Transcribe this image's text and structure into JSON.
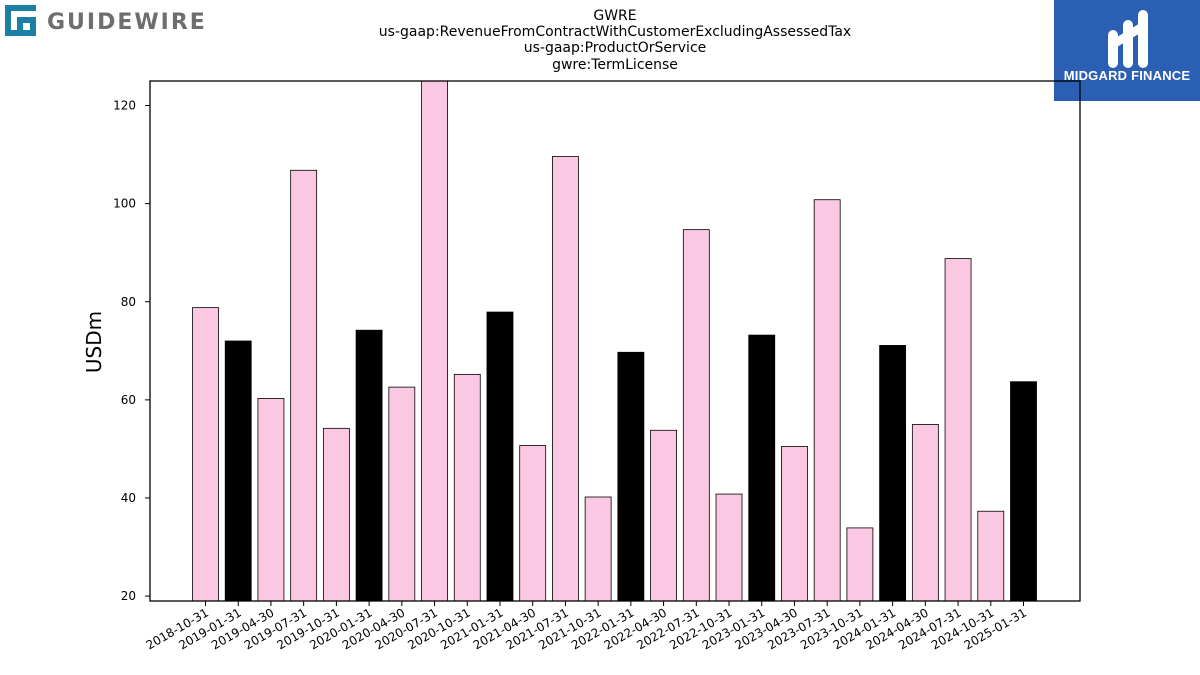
{
  "logos": {
    "left_text": "GUIDEWIRE",
    "right_text": "MIDGARD FINANCE"
  },
  "colors": {
    "highlight": "#000000",
    "normal": "#fbc8e3",
    "left_logo_icon": "#1c7fa6",
    "left_logo_text": "#6d6e70",
    "right_logo_bg": "#2b5fb4"
  },
  "chart_data": {
    "type": "bar",
    "title_lines": [
      "GWRE",
      "us-gaap:RevenueFromContractWithCustomerExcludingAssessedTax",
      "us-gaap:ProductOrService",
      "gwre:TermLicense"
    ],
    "xlabel": "",
    "ylabel": "USDm",
    "ylim": [
      19,
      125
    ],
    "yticks": [
      20,
      40,
      60,
      80,
      100,
      120
    ],
    "grid": false,
    "categories": [
      "2018-10-31",
      "2019-01-31",
      "2019-04-30",
      "2019-07-31",
      "2019-10-31",
      "2020-01-31",
      "2020-04-30",
      "2020-07-31",
      "2020-10-31",
      "2021-01-31",
      "2021-04-30",
      "2021-07-31",
      "2021-10-31",
      "2022-01-31",
      "2022-04-30",
      "2022-07-31",
      "2022-10-31",
      "2023-01-31",
      "2023-04-30",
      "2023-07-31",
      "2023-10-31",
      "2024-01-31",
      "2024-04-30",
      "2024-07-31",
      "2024-10-31",
      "2025-01-31"
    ],
    "values": [
      78.8,
      72.0,
      60.3,
      106.8,
      54.2,
      74.2,
      62.6,
      125.0,
      65.2,
      77.9,
      50.7,
      109.6,
      40.2,
      69.7,
      53.8,
      94.7,
      40.8,
      73.2,
      50.5,
      100.8,
      33.9,
      71.1,
      55.0,
      88.8,
      37.3,
      63.7
    ],
    "highlighted": [
      false,
      true,
      false,
      false,
      false,
      true,
      false,
      false,
      false,
      true,
      false,
      false,
      false,
      true,
      false,
      false,
      false,
      true,
      false,
      false,
      false,
      true,
      false,
      false,
      false,
      true
    ]
  }
}
